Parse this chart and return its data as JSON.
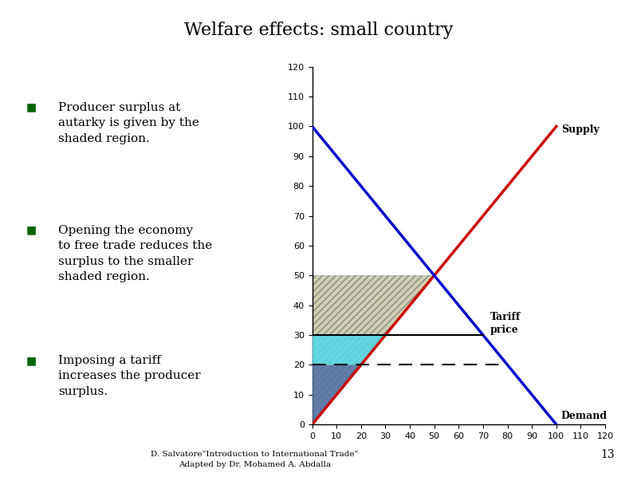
{
  "title": "Welfare effects: small country",
  "supply_color": "#cc0000",
  "demand_color": "#0000cc",
  "autarky_price": 50,
  "free_trade_price": 20,
  "tariff_price": 30,
  "xlim": [
    0,
    120
  ],
  "ylim": [
    0,
    120
  ],
  "xticks": [
    0,
    10,
    20,
    30,
    40,
    50,
    60,
    70,
    80,
    90,
    100,
    110,
    120
  ],
  "yticks": [
    0,
    10,
    20,
    30,
    40,
    50,
    60,
    70,
    80,
    90,
    100,
    110,
    120
  ],
  "supply_label": "Supply",
  "demand_label": "Demand",
  "tariff_label": "Tariff\nprice",
  "autarky_hatch_color": "#d0d0b0",
  "free_trade_fill_color": "#50d8e8",
  "tariff_fill_color": "#5070a8",
  "footnote_line1": "D. Salvatore\"Introduction to International Trade\"",
  "footnote_line2": "Adapted by Dr. Mohamed A. Abdalla",
  "page_num": "13",
  "bullet_color": "#006600",
  "bullet_texts": [
    "Producer surplus at\nautarky is given by the\nshaded region.",
    "Opening the economy\nto free trade reduces the\nsurplus to the smaller\nshaded region.",
    "Imposing a tariff\nincreases the producer\nsurplus."
  ],
  "title_fontsize": 16,
  "text_fontsize": 11,
  "label_fontsize": 9,
  "tick_fontsize": 8
}
